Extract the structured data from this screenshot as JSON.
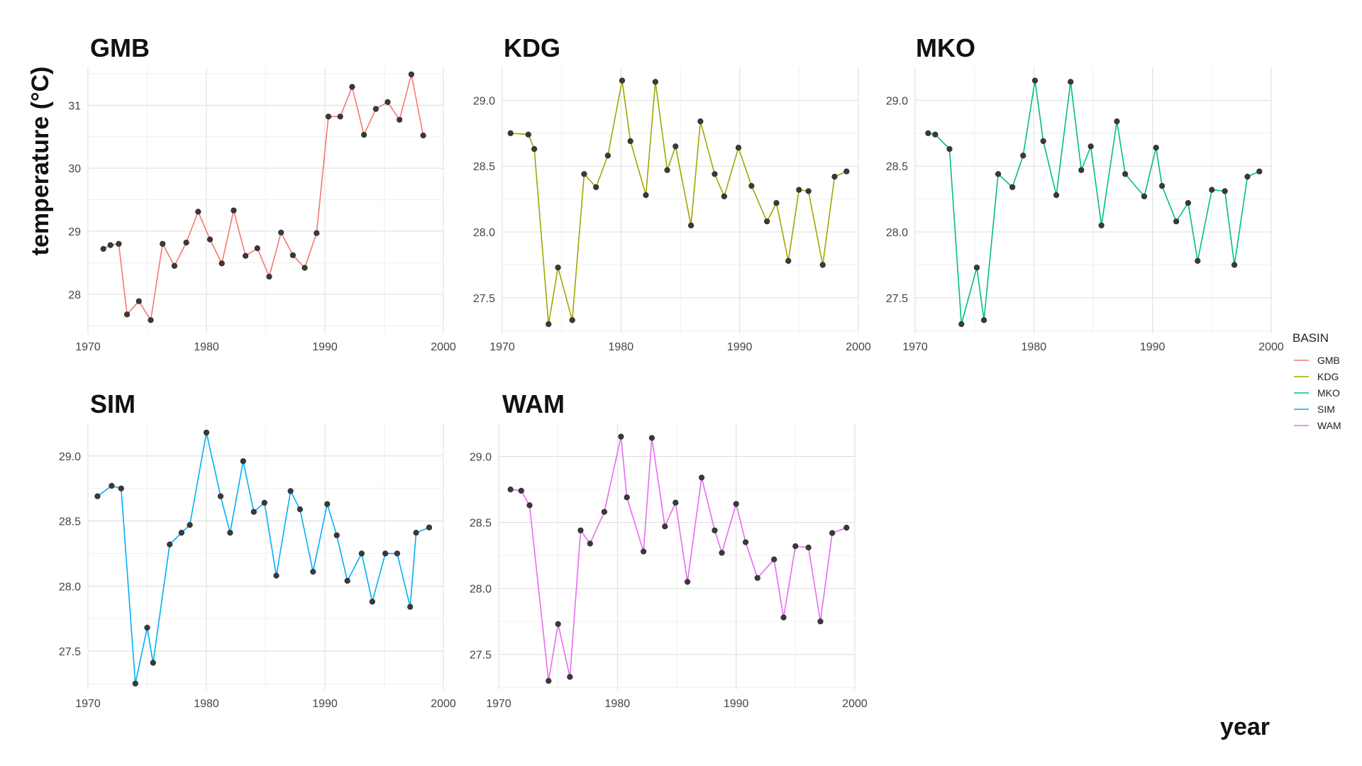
{
  "chart_data": {
    "type": "line",
    "facet_by": "BASIN",
    "ylabel": "temperature (°C)",
    "xlabel": "year",
    "grid": true,
    "point_color": "#3a3a3a",
    "legend": {
      "title": "BASIN",
      "position": "right",
      "entries": [
        {
          "label": "GMB",
          "color": "#F8766D"
        },
        {
          "label": "KDG",
          "color": "#A3A500"
        },
        {
          "label": "MKO",
          "color": "#00BF7D"
        },
        {
          "label": "SIM",
          "color": "#00B0F6"
        },
        {
          "label": "WAM",
          "color": "#E76BF3"
        }
      ]
    },
    "panels": [
      {
        "name": "GMB",
        "color": "#F8766D",
        "xlim": [
          1970,
          2000
        ],
        "ylim": [
          27.38,
          31.6
        ],
        "xticks": [
          1970,
          1980,
          1990,
          2000
        ],
        "yticks": [
          28,
          29,
          30,
          31
        ],
        "ytick_labels": [
          "28",
          "29",
          "30",
          "31"
        ],
        "x": [
          1971.3,
          1971.9,
          1972.6,
          1973.3,
          1974.3,
          1975.3,
          1976.3,
          1977.3,
          1978.3,
          1979.3,
          1980.3,
          1981.3,
          1982.3,
          1983.3,
          1984.3,
          1985.3,
          1986.3,
          1987.3,
          1988.3,
          1989.3,
          1990.3,
          1991.3,
          1992.3,
          1993.3,
          1994.3,
          1995.3,
          1996.3,
          1997.3,
          1998.3,
          1999.3
        ],
        "y": [
          28.72,
          28.78,
          28.8,
          27.68,
          27.89,
          27.59,
          28.8,
          28.45,
          28.82,
          29.31,
          28.87,
          28.49,
          29.33,
          28.61,
          28.73,
          28.28,
          28.98,
          28.62,
          28.42,
          28.97,
          30.82,
          30.82,
          31.29,
          30.53,
          30.94,
          31.05,
          30.77,
          31.49,
          30.52,
          null
        ]
      },
      {
        "name": "KDG",
        "color": "#A3A500",
        "xlim": [
          1970,
          2000
        ],
        "ylim": [
          27.23,
          29.25
        ],
        "xticks": [
          1970,
          1980,
          1990,
          2000
        ],
        "yticks": [
          27.5,
          28.0,
          28.5,
          29.0
        ],
        "ytick_labels": [
          "27.5",
          "28.0",
          "28.5",
          "29.0"
        ],
        "x": [
          1970.7,
          1972.2,
          1972.7,
          1973.9,
          1974.7,
          1975.9,
          1976.9,
          1977.9,
          1978.9,
          1980.1,
          1980.8,
          1982.1,
          1982.9,
          1983.9,
          1984.6,
          1985.9,
          1986.7,
          1987.9,
          1988.7,
          1989.9,
          1991.0,
          1992.3,
          1993.1,
          1994.1,
          1995.0,
          1995.8,
          1997.0,
          1998.0,
          1999.0
        ],
        "y": [
          28.75,
          28.74,
          28.63,
          27.3,
          27.73,
          27.33,
          28.44,
          28.34,
          28.58,
          29.15,
          28.69,
          28.28,
          29.14,
          28.47,
          28.65,
          28.05,
          28.84,
          28.44,
          28.27,
          28.64,
          28.35,
          28.08,
          28.22,
          27.78,
          28.32,
          28.31,
          27.75,
          28.42,
          28.46
        ]
      },
      {
        "name": "MKO",
        "color": "#00BF7D",
        "xlim": [
          1970,
          2000
        ],
        "ylim": [
          27.23,
          29.25
        ],
        "xticks": [
          1970,
          1980,
          1990,
          2000
        ],
        "yticks": [
          27.5,
          28.0,
          28.5,
          29.0
        ],
        "ytick_labels": [
          "27.5",
          "28.0",
          "28.5",
          "29.0"
        ],
        "x": [
          1971.1,
          1971.7,
          1972.9,
          1973.9,
          1975.2,
          1975.8,
          1977.0,
          1978.2,
          1979.1,
          1980.1,
          1980.8,
          1981.9,
          1983.1,
          1984.0,
          1984.8,
          1985.7,
          1987.0,
          1987.7,
          1989.3,
          1990.3,
          1990.8,
          1992.0,
          1993.0,
          1993.8,
          1995.0,
          1996.1,
          1996.9,
          1998.0,
          1999.0
        ],
        "y": [
          28.75,
          28.74,
          28.63,
          27.3,
          27.73,
          27.33,
          28.44,
          28.34,
          28.58,
          29.15,
          28.69,
          28.28,
          29.14,
          28.47,
          28.65,
          28.05,
          28.84,
          28.44,
          28.27,
          28.64,
          28.35,
          28.08,
          28.22,
          27.78,
          28.32,
          28.31,
          27.75,
          28.42,
          28.46
        ]
      },
      {
        "name": "SIM",
        "color": "#00B0F6",
        "xlim": [
          1970,
          2000
        ],
        "ylim": [
          27.2,
          29.25
        ],
        "xticks": [
          1970,
          1980,
          1990,
          2000
        ],
        "yticks": [
          27.5,
          28.0,
          28.5,
          29.0
        ],
        "ytick_labels": [
          "27.5",
          "28.0",
          "28.5",
          "29.0"
        ],
        "x": [
          1970.8,
          1972.0,
          1972.8,
          1974.0,
          1975.0,
          1975.5,
          1976.9,
          1977.9,
          1978.6,
          1980.0,
          1981.2,
          1982.0,
          1983.1,
          1984.0,
          1984.9,
          1985.9,
          1987.1,
          1987.9,
          1989.0,
          1990.2,
          1991.0,
          1991.9,
          1993.1,
          1994.0,
          1995.1,
          1996.1,
          1997.2,
          1997.7,
          1998.8
        ],
        "y": [
          28.69,
          28.77,
          28.75,
          27.25,
          27.68,
          27.41,
          28.32,
          28.41,
          28.47,
          29.18,
          28.69,
          28.41,
          28.96,
          28.57,
          28.64,
          28.08,
          28.73,
          28.59,
          28.11,
          28.63,
          28.39,
          28.04,
          28.25,
          27.88,
          28.25,
          28.25,
          27.84,
          28.41,
          28.45
        ]
      },
      {
        "name": "WAM",
        "color": "#E76BF3",
        "xlim": [
          1970,
          2000
        ],
        "ylim": [
          27.23,
          29.25
        ],
        "xticks": [
          1970,
          1980,
          1990,
          2000
        ],
        "yticks": [
          27.5,
          28.0,
          28.5,
          29.0
        ],
        "ytick_labels": [
          "27.5",
          "28.0",
          "28.5",
          "29.0"
        ],
        "x": [
          1971.0,
          1971.9,
          1972.6,
          1974.2,
          1975.0,
          1976.0,
          1976.9,
          1977.7,
          1978.9,
          1980.3,
          1980.8,
          1982.2,
          1982.9,
          1984.0,
          1984.9,
          1985.9,
          1987.1,
          1988.2,
          1988.8,
          1990.0,
          1990.8,
          1991.8,
          1993.2,
          1994.0,
          1995.0,
          1996.1,
          1997.1,
          1998.1,
          1999.3
        ],
        "y": [
          28.75,
          28.74,
          28.63,
          27.3,
          27.73,
          27.33,
          28.44,
          28.34,
          28.58,
          29.15,
          28.69,
          28.28,
          29.14,
          28.47,
          28.65,
          28.05,
          28.84,
          28.44,
          28.27,
          28.64,
          28.35,
          28.08,
          28.22,
          27.78,
          28.32,
          28.31,
          27.75,
          28.42,
          28.46
        ]
      }
    ]
  }
}
